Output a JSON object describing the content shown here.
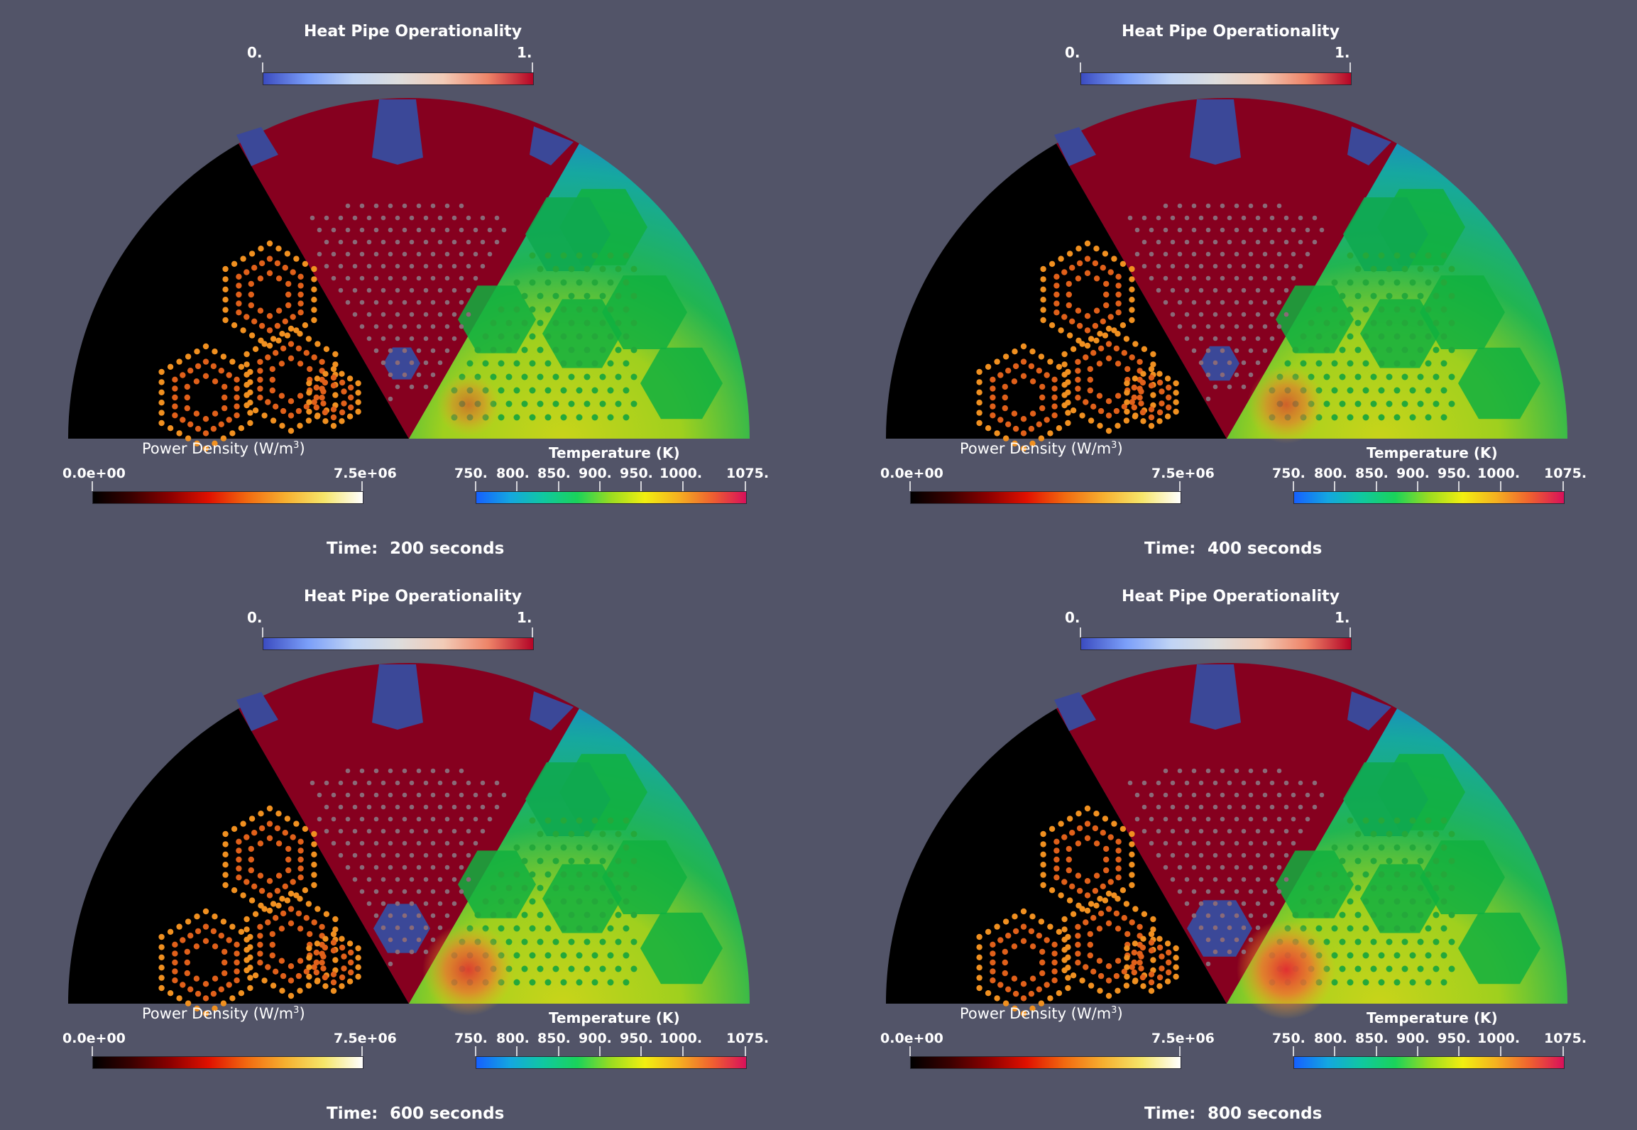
{
  "colors": {
    "background": "#525468",
    "fuel_region": "#000000",
    "heat_pipe_region": "#86001f",
    "blue_region": "#3b4898",
    "temperature_base": "#16a85a"
  },
  "legends": {
    "heat_pipe": {
      "title": "Heat Pipe Operationality",
      "min": "0.",
      "max": "1."
    },
    "power_density": {
      "title": "Power Density (W/m",
      "sup": "3",
      "close": ")",
      "min": "0.0e+00",
      "max": "7.5e+06"
    },
    "temperature": {
      "title": "Temperature (K)",
      "ticks": [
        "750.",
        "800.",
        "850.",
        "900.",
        "950.",
        "1000.",
        "1075."
      ]
    }
  },
  "panels": [
    {
      "time_label": "Time:",
      "time_value": "200 seconds"
    },
    {
      "time_label": "Time:",
      "time_value": "400 seconds"
    },
    {
      "time_label": "Time:",
      "time_value": "600 seconds"
    },
    {
      "time_label": "Time:",
      "time_value": "800 seconds"
    }
  ]
}
